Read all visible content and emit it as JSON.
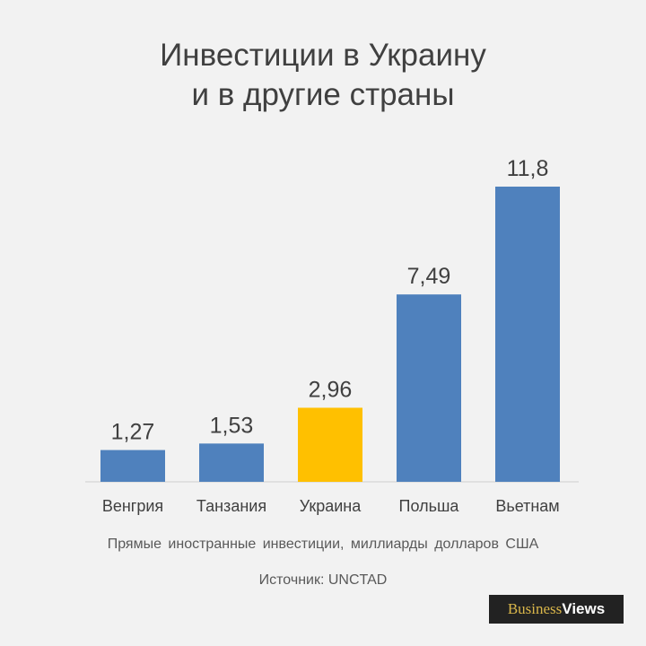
{
  "title": {
    "line1": "Инвестиции в Украину",
    "line2": "и в другие страны"
  },
  "subtitle": "Прямые иностранные инвестиции, миллиарды долларов США",
  "source": "Источник: UNCTAD",
  "logo": {
    "part1": "Business",
    "part2": "Views"
  },
  "colors": {
    "bar": "#4f81bd",
    "highlight": "#ffc000",
    "axis": "#d9d9d9",
    "label": "#404040"
  },
  "chart_data": {
    "type": "bar",
    "title": "Инвестиции в Украину и в другие страны",
    "xlabel": "",
    "ylabel": "",
    "ylim": [
      0,
      12.5
    ],
    "grid": false,
    "legend": "none",
    "categories": [
      "Венгрия",
      "Танзания",
      "Украина",
      "Польша",
      "Вьетнам"
    ],
    "values": [
      1.27,
      1.53,
      2.96,
      7.49,
      11.8
    ],
    "value_labels": [
      "1,27",
      "1,53",
      "2,96",
      "7,49",
      "11,8"
    ],
    "highlight_category": "Украина"
  }
}
